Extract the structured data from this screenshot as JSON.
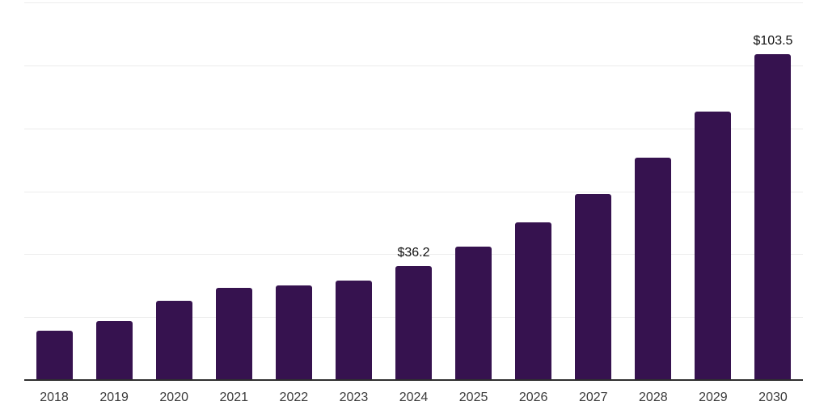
{
  "chart_data": {
    "type": "bar",
    "title": "",
    "xlabel": "",
    "ylabel": "",
    "categories": [
      "2018",
      "2019",
      "2020",
      "2021",
      "2022",
      "2023",
      "2024",
      "2025",
      "2026",
      "2027",
      "2028",
      "2029",
      "2030"
    ],
    "values": [
      15.8,
      18.8,
      25.2,
      29.3,
      30.1,
      31.6,
      36.2,
      42.5,
      50.0,
      59.0,
      70.7,
      85.4,
      103.5
    ],
    "data_labels": [
      {
        "category": "2024",
        "text": "$36.2"
      },
      {
        "category": "2030",
        "text": "$103.5"
      }
    ],
    "ylim": [
      0,
      120
    ],
    "gridline_step": 20,
    "grid": true,
    "legend": "none",
    "y_axis_ticks_visible": false,
    "colors": {
      "bar": "#36124f",
      "gridline": "#ececec",
      "axis_line": "#2f2f2f",
      "tick_label": "#3a3a3a",
      "data_label": "#111111",
      "background": "#ffffff"
    }
  }
}
